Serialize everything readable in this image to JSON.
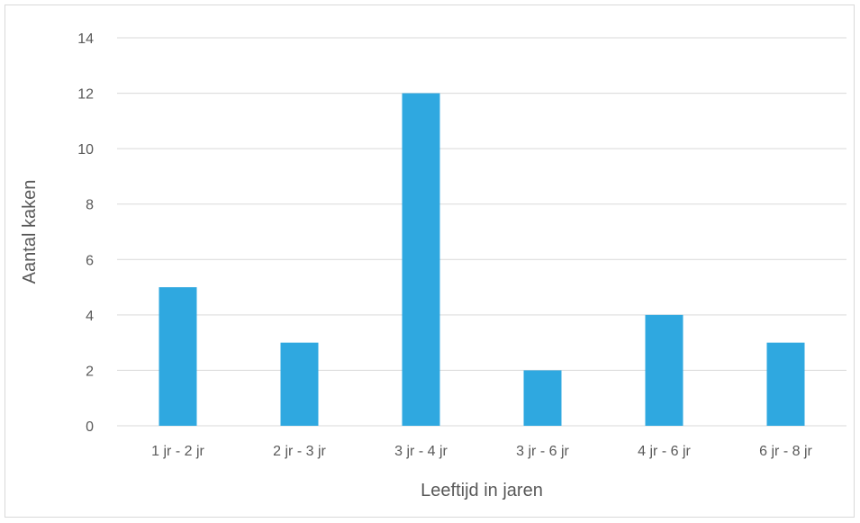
{
  "chart_data": {
    "type": "bar",
    "categories": [
      "1 jr - 2 jr",
      "2 jr - 3 jr",
      "3 jr - 4 jr",
      "3 jr - 6 jr",
      "4 jr - 6 jr",
      "6 jr - 8 jr"
    ],
    "values": [
      5,
      3,
      12,
      2,
      4,
      3
    ],
    "title": "",
    "xlabel": "Leeftijd in jaren",
    "ylabel": "Aantal kaken",
    "ylim": [
      0,
      14
    ],
    "yticks": [
      0,
      2,
      4,
      6,
      8,
      10,
      12,
      14
    ],
    "grid": true,
    "bar_color": "#2FA8E0",
    "gridline_color": "#D9D9D9",
    "text_color": "#595959"
  }
}
